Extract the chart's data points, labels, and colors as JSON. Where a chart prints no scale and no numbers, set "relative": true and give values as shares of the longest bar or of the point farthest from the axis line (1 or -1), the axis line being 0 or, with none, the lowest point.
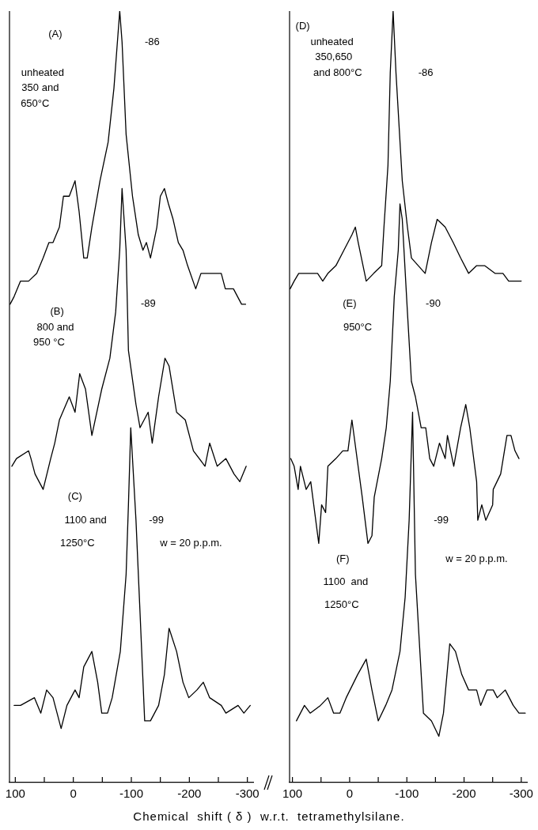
{
  "chart_data": [
    {
      "type": "line",
      "relative": true,
      "marker": "none",
      "line_style": "solid",
      "xlabel": "Chemical  shift ( δ )  w.r.t.  tetramethylsilane.",
      "xlim": [
        110,
        -310
      ],
      "xticks": [
        100,
        {
          "value": 50,
          "label": null
        },
        0,
        {
          "value": -50,
          "label": null
        },
        -100,
        {
          "value": -150,
          "label": null
        },
        -200,
        {
          "value": -250,
          "label": null
        },
        -300
      ],
      "series": [
        {
          "color": "#000000",
          "x": [
            109,
            102,
            91,
            77,
            63,
            52,
            42,
            35,
            24,
            17,
            7,
            -3,
            -10,
            -18,
            -24,
            -32,
            -46,
            -60,
            -70,
            -77,
            -80,
            -84,
            -91,
            -102,
            -112,
            -120,
            -126,
            -133,
            -144,
            -150,
            -157,
            -164,
            -172,
            -181,
            -189,
            -197,
            -211,
            -220,
            -235,
            -255,
            -262,
            -276,
            -290,
            -297
          ],
          "values": [
            0.62,
            0.63,
            0.65,
            0.65,
            0.66,
            0.68,
            0.7,
            0.7,
            0.72,
            0.76,
            0.76,
            0.78,
            0.74,
            0.68,
            0.68,
            0.72,
            0.78,
            0.83,
            0.9,
            0.97,
            1.0,
            0.96,
            0.84,
            0.76,
            0.71,
            0.69,
            0.7,
            0.68,
            0.72,
            0.76,
            0.77,
            0.75,
            0.73,
            0.7,
            0.69,
            0.67,
            0.64,
            0.66,
            0.66,
            0.66,
            0.64,
            0.64,
            0.62,
            0.62
          ]
        },
        {
          "color": "#000000",
          "x": [
            106,
            98,
            77,
            73,
            66,
            52,
            39,
            32,
            24,
            7,
            -3,
            -11,
            -21,
            -32,
            -49,
            -63,
            -73,
            -80,
            -84,
            -91,
            -95,
            -108,
            -115,
            -129,
            -136,
            -147,
            -158,
            -165,
            -178,
            -193,
            -207,
            -227,
            -235,
            -248,
            -263,
            -277,
            -287,
            -298
          ],
          "values": [
            0.41,
            0.42,
            0.43,
            0.42,
            0.4,
            0.38,
            0.42,
            0.44,
            0.47,
            0.5,
            0.48,
            0.53,
            0.51,
            0.45,
            0.51,
            0.55,
            0.61,
            0.69,
            0.77,
            0.69,
            0.56,
            0.49,
            0.46,
            0.48,
            0.44,
            0.5,
            0.55,
            0.54,
            0.48,
            0.47,
            0.43,
            0.41,
            0.44,
            0.41,
            0.42,
            0.4,
            0.39,
            0.41
          ]
        },
        {
          "color": "#000000",
          "x": [
            102,
            91,
            67,
            56,
            46,
            35,
            21,
            11,
            -3,
            -10,
            -18,
            -32,
            -42,
            -49,
            -59,
            -67,
            -81,
            -91,
            -95,
            -99,
            -108,
            -115,
            -123,
            -133,
            -147,
            -157,
            -165,
            -178,
            -189,
            -199,
            -213,
            -224,
            -235,
            -255,
            -263,
            -284,
            -294,
            -305
          ],
          "values": [
            0.1,
            0.1,
            0.11,
            0.09,
            0.12,
            0.11,
            0.07,
            0.1,
            0.12,
            0.11,
            0.15,
            0.17,
            0.13,
            0.09,
            0.09,
            0.11,
            0.17,
            0.27,
            0.36,
            0.46,
            0.34,
            0.22,
            0.08,
            0.08,
            0.1,
            0.14,
            0.2,
            0.17,
            0.13,
            0.11,
            0.12,
            0.13,
            0.11,
            0.1,
            0.09,
            0.1,
            0.09,
            0.1
          ]
        }
      ],
      "annotations": [
        "(A)",
        "unheated",
        "350 and",
        "650°C",
        "-86",
        "(B)",
        "800 and",
        "950 °C",
        "-89",
        "(C)",
        "1100 and",
        "1250°C",
        "-99",
        "w = 20 p.p.m."
      ]
    },
    {
      "type": "line",
      "relative": true,
      "marker": "none",
      "line_style": "solid",
      "xlim": [
        105,
        -310
      ],
      "xticks": [
        100,
        {
          "value": 50,
          "label": null
        },
        0,
        {
          "value": -50,
          "label": null
        },
        -100,
        {
          "value": -150,
          "label": null
        },
        -200,
        {
          "value": -250,
          "label": null
        },
        -300
      ],
      "series": [
        {
          "color": "#000000",
          "x": [
            104,
            97,
            89,
            75,
            68,
            56,
            47,
            38,
            24,
            10,
            -4,
            -10,
            -15,
            -29,
            -42,
            -56,
            -60,
            -67,
            -71,
            -76,
            -81,
            -92,
            -101,
            -108,
            -132,
            -143,
            -153,
            -167,
            -181,
            -194,
            -208,
            -222,
            -236,
            -254,
            -268,
            -278,
            -289,
            -300
          ],
          "values": [
            0.64,
            0.65,
            0.66,
            0.66,
            0.66,
            0.66,
            0.65,
            0.66,
            0.67,
            0.69,
            0.71,
            0.72,
            0.7,
            0.65,
            0.66,
            0.67,
            0.72,
            0.8,
            0.92,
            1.0,
            0.92,
            0.78,
            0.72,
            0.68,
            0.66,
            0.7,
            0.73,
            0.72,
            0.7,
            0.68,
            0.66,
            0.67,
            0.67,
            0.66,
            0.66,
            0.65,
            0.65,
            0.65
          ]
        },
        {
          "color": "#000000",
          "x": [
            103,
            97,
            90,
            86,
            76,
            68,
            54,
            49,
            42,
            38,
            24,
            12,
            3,
            -4,
            -22,
            -32,
            -39,
            -43,
            -56,
            -64,
            -71,
            -78,
            -85,
            -88,
            -92,
            -101,
            -108,
            -115,
            -125,
            -133,
            -140,
            -147,
            -157,
            -167,
            -171,
            -182,
            -194,
            -203,
            -210,
            -222,
            -224,
            -231,
            -238,
            -250,
            -251,
            -264,
            -275,
            -282,
            -289,
            -296
          ],
          "values": [
            0.42,
            0.41,
            0.38,
            0.41,
            0.38,
            0.39,
            0.31,
            0.36,
            0.35,
            0.41,
            0.42,
            0.43,
            0.43,
            0.47,
            0.37,
            0.31,
            0.32,
            0.37,
            0.42,
            0.46,
            0.52,
            0.63,
            0.69,
            0.75,
            0.73,
            0.61,
            0.52,
            0.5,
            0.46,
            0.46,
            0.42,
            0.41,
            0.44,
            0.42,
            0.45,
            0.41,
            0.46,
            0.49,
            0.46,
            0.39,
            0.34,
            0.36,
            0.34,
            0.36,
            0.38,
            0.4,
            0.45,
            0.45,
            0.43,
            0.42
          ]
        },
        {
          "color": "#000000",
          "x": [
            93,
            79,
            69,
            51,
            38,
            28,
            17,
            6,
            -14,
            -29,
            -39,
            -50,
            -63,
            -74,
            -88,
            -97,
            -104,
            -110,
            -115,
            -129,
            -143,
            -156,
            -164,
            -175,
            -185,
            -196,
            -208,
            -222,
            -229,
            -240,
            -251,
            -258,
            -272,
            -286,
            -296,
            -307
          ],
          "values": [
            0.08,
            0.1,
            0.09,
            0.1,
            0.11,
            0.09,
            0.09,
            0.11,
            0.14,
            0.16,
            0.12,
            0.08,
            0.1,
            0.12,
            0.17,
            0.24,
            0.34,
            0.48,
            0.27,
            0.09,
            0.08,
            0.06,
            0.09,
            0.18,
            0.17,
            0.14,
            0.12,
            0.12,
            0.1,
            0.12,
            0.12,
            0.11,
            0.12,
            0.1,
            0.09,
            0.09
          ]
        }
      ],
      "annotations": [
        "(D)",
        "unheated",
        "350,650",
        "and 800°C",
        "-86",
        "(E)",
        "950°C",
        "-90",
        "(F)",
        "1100  and",
        "1250°C",
        "-99",
        "w = 20 p.p.m."
      ]
    }
  ]
}
